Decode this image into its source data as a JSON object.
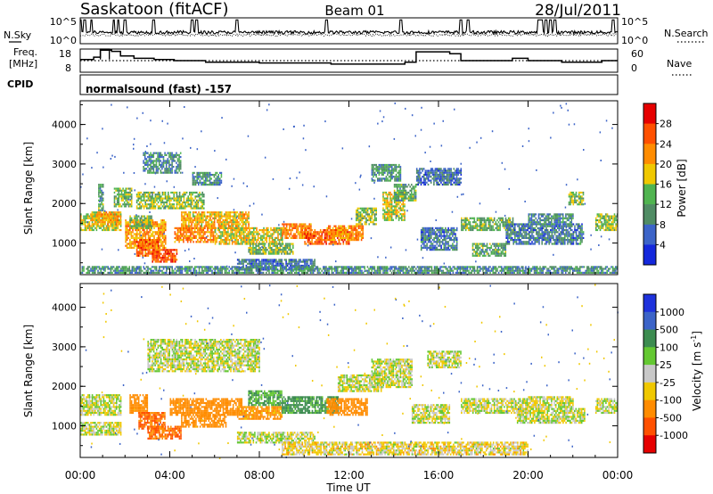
{
  "header": {
    "station": "Saskatoon (fitACF)",
    "beam": "Beam 01",
    "date": "28/Jul/2011"
  },
  "noise_panel": {
    "left_label": "N.Sky",
    "left_ticks": [
      "10^5",
      "10^0"
    ],
    "right_label": "N.Search",
    "right_ticks": [
      "10^5",
      "10^0"
    ]
  },
  "freq_panel": {
    "left_label_line1": "Freq.",
    "left_label_line2": "[MHz]",
    "left_ticks": [
      "18",
      "8"
    ],
    "right_label": "Nave",
    "right_ticks": [
      "60",
      "0"
    ]
  },
  "cpid": {
    "label": "CPID",
    "value": "normalsound (fast) -157"
  },
  "x_axis": {
    "title": "Time UT",
    "ticks": [
      "00:00",
      "04:00",
      "08:00",
      "12:00",
      "16:00",
      "20:00",
      "00:00"
    ]
  },
  "power_colorbar": {
    "title": "Power [dB]",
    "ticks": [
      "4",
      "8",
      "12",
      "16",
      "20",
      "24",
      "28"
    ],
    "colors": [
      "#1428dc",
      "#3c64c8",
      "#508c64",
      "#50b450",
      "#f0c800",
      "#ff8c00",
      "#ff5000",
      "#e60000"
    ]
  },
  "velocity_colorbar": {
    "title": "Velocity [m s",
    "title_sup": "-1",
    "title_end": "]",
    "ticks": [
      "1000",
      "500",
      "100",
      "25",
      "-25",
      "-100",
      "-500",
      "-1000"
    ],
    "colors": [
      "#1e32dc",
      "#3c64c8",
      "#3c8c50",
      "#64c832",
      "#c8c8c8",
      "#f0c800",
      "#ff8c00",
      "#ff5000",
      "#e60000"
    ]
  },
  "chart_data": [
    {
      "type": "heatmap",
      "name": "power",
      "ylabel": "Slant Range [km]",
      "xlabel": "",
      "xlim": [
        "00:00",
        "24:00"
      ],
      "ylim": [
        200,
        4600
      ],
      "yticks": [
        1000,
        2000,
        3000,
        4000
      ],
      "grid": false,
      "blobs_hr_km_dB": [
        [
          0.0,
          1.8,
          1350,
          1750,
          17
        ],
        [
          0.5,
          1.8,
          1500,
          1800,
          20
        ],
        [
          0.8,
          1.0,
          1850,
          2500,
          12
        ],
        [
          1.5,
          2.3,
          1950,
          2400,
          14
        ],
        [
          2.0,
          3.8,
          900,
          1600,
          21
        ],
        [
          2.2,
          3.2,
          1400,
          1700,
          14
        ],
        [
          2.5,
          3.5,
          700,
          1100,
          24
        ],
        [
          2.8,
          4.5,
          2800,
          3300,
          9
        ],
        [
          3.2,
          4.3,
          550,
          850,
          26
        ],
        [
          2.5,
          5.5,
          1900,
          2300,
          15
        ],
        [
          4.5,
          7.5,
          1400,
          1800,
          20
        ],
        [
          4.2,
          6.0,
          1050,
          1400,
          23
        ],
        [
          5.0,
          6.3,
          2500,
          2800,
          10
        ],
        [
          6.0,
          9.0,
          1000,
          1400,
          18
        ],
        [
          7.5,
          9.5,
          750,
          1000,
          13
        ],
        [
          7.0,
          10.5,
          350,
          600,
          8
        ],
        [
          9.0,
          10.3,
          1150,
          1500,
          23
        ],
        [
          10.0,
          12.0,
          1000,
          1350,
          25
        ],
        [
          11.0,
          12.6,
          1100,
          1450,
          22
        ],
        [
          12.3,
          13.2,
          1500,
          1900,
          15
        ],
        [
          13.0,
          14.3,
          2600,
          3000,
          11
        ],
        [
          13.5,
          14.5,
          1600,
          2300,
          17
        ],
        [
          14.0,
          15.0,
          2100,
          2500,
          12
        ],
        [
          15.0,
          17.0,
          2500,
          2900,
          7
        ],
        [
          15.2,
          16.8,
          850,
          1400,
          8
        ],
        [
          17.0,
          19.3,
          1350,
          1650,
          13
        ],
        [
          17.5,
          19.0,
          700,
          1000,
          12
        ],
        [
          19.0,
          22.5,
          1000,
          1500,
          8
        ],
        [
          20.0,
          22.0,
          1500,
          1750,
          9
        ],
        [
          21.8,
          22.5,
          2000,
          2300,
          14
        ],
        [
          23.0,
          24.0,
          1350,
          1750,
          15
        ],
        [
          0.0,
          24.0,
          270,
          420,
          10
        ]
      ]
    },
    {
      "type": "heatmap",
      "name": "velocity",
      "ylabel": "Slant Range [km]",
      "xlabel": "Time UT",
      "xlim": [
        "00:00",
        "24:00"
      ],
      "ylim": [
        200,
        4600
      ],
      "yticks": [
        1000,
        2000,
        3000,
        4000
      ],
      "grid": false,
      "blobs_hr_km_ms": [
        [
          0.0,
          1.8,
          1300,
          1800,
          0
        ],
        [
          0.0,
          1.8,
          800,
          1100,
          0
        ],
        [
          2.2,
          3.0,
          1350,
          1800,
          -300
        ],
        [
          2.6,
          3.8,
          950,
          1350,
          -500
        ],
        [
          3.0,
          4.5,
          700,
          1000,
          -500
        ],
        [
          3.0,
          8.0,
          2400,
          3200,
          0
        ],
        [
          4.0,
          7.2,
          1300,
          1700,
          -200
        ],
        [
          4.5,
          6.5,
          1000,
          1300,
          -300
        ],
        [
          7.0,
          9.0,
          1200,
          1500,
          -150
        ],
        [
          7.5,
          9.0,
          1550,
          1900,
          100
        ],
        [
          9.0,
          11.5,
          1350,
          1750,
          150
        ],
        [
          11.0,
          12.8,
          1300,
          1700,
          -200
        ],
        [
          7.0,
          10.5,
          600,
          850,
          0
        ],
        [
          11.5,
          13.5,
          1900,
          2300,
          0
        ],
        [
          13.0,
          14.8,
          2000,
          2700,
          0
        ],
        [
          14.8,
          16.5,
          1100,
          1550,
          0
        ],
        [
          15.5,
          17.0,
          2500,
          2900,
          0
        ],
        [
          17.0,
          20.0,
          1350,
          1700,
          0
        ],
        [
          19.5,
          22.5,
          1100,
          1450,
          0
        ],
        [
          20.0,
          22.0,
          1500,
          1750,
          0
        ],
        [
          23.0,
          24.0,
          1350,
          1700,
          0
        ],
        [
          9.0,
          20.0,
          300,
          600,
          -40
        ]
      ]
    },
    {
      "type": "line",
      "name": "freq",
      "ylim": [
        8,
        18
      ],
      "note": "operating frequency step function",
      "steps_hr_mhz": [
        [
          0.0,
          13.5
        ],
        [
          0.6,
          14.5
        ],
        [
          0.9,
          17.5
        ],
        [
          1.4,
          17.0
        ],
        [
          1.8,
          15.0
        ],
        [
          2.4,
          14.0
        ],
        [
          3.3,
          13.5
        ],
        [
          4.2,
          13.0
        ],
        [
          5.6,
          12.3
        ],
        [
          8.0,
          12.0
        ],
        [
          10.3,
          12.0
        ],
        [
          11.2,
          11.5
        ],
        [
          12.6,
          11.5
        ],
        [
          14.5,
          12.3
        ],
        [
          15.0,
          16.8
        ],
        [
          16.5,
          16.0
        ],
        [
          17.0,
          13.0
        ],
        [
          18.5,
          13.0
        ],
        [
          19.3,
          14.0
        ],
        [
          20.0,
          13.0
        ],
        [
          21.5,
          12.3
        ],
        [
          22.5,
          12.3
        ],
        [
          23.3,
          13.0
        ],
        [
          24.0,
          13.0
        ]
      ]
    },
    {
      "type": "line",
      "name": "nave",
      "ylim": [
        0,
        60
      ],
      "value": 30
    },
    {
      "type": "line",
      "name": "noise",
      "note": "N.Sky / N.Search traces, log scale",
      "sky_level_log": 2.2,
      "search_level_log": 1.7,
      "spike_hours": [
        0.0,
        0.2,
        0.5,
        1.5,
        1.7,
        2.0,
        3.3,
        5.0,
        5.2,
        7.0,
        11.0,
        14.3,
        17.0,
        17.3,
        20.5,
        20.6,
        20.8,
        21.0,
        21.2,
        23.8
      ]
    }
  ]
}
